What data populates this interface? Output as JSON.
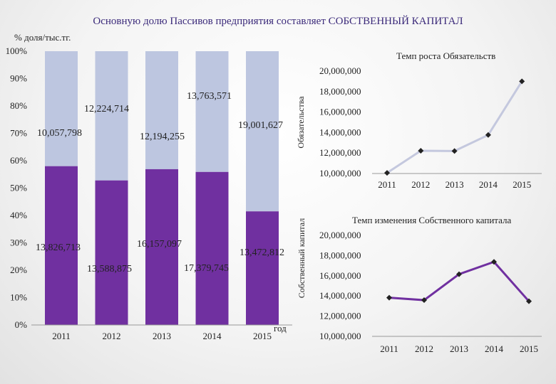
{
  "title": "Основную долю Пассивов предприятия составляет СОБСТВЕННЫЙ КАПИТАЛ",
  "unit_label": "% доля/тыс.тг.",
  "chart_data": [
    {
      "type": "bar",
      "stacked": true,
      "categories": [
        "2011",
        "2012",
        "2013",
        "2014",
        "2015"
      ],
      "xlabel": "год",
      "ylabel": "",
      "ylim": [
        0,
        100
      ],
      "yticks": [
        "0%",
        "10%",
        "20%",
        "30%",
        "40%",
        "50%",
        "60%",
        "70%",
        "80%",
        "90%",
        "100%"
      ],
      "series": [
        {
          "role": "equity",
          "color": "#7030a0",
          "values": [
            58.0,
            52.8,
            56.9,
            55.9,
            41.5
          ],
          "labels": [
            "13,826,713",
            "13,588,875",
            "16,157,097",
            "17,379,745",
            "13,472,812"
          ]
        },
        {
          "role": "liabilities",
          "color": "#bdc6e0",
          "values": [
            42.0,
            47.2,
            43.1,
            44.1,
            58.5
          ],
          "labels": [
            "10,057,798",
            "12,224,714",
            "12,194,255",
            "13,763,571",
            "19,001,627"
          ]
        }
      ],
      "grid": false,
      "legend": "none"
    },
    {
      "type": "line",
      "title": "Темп роста Обязательств",
      "ylabel": "Обязательства",
      "x": [
        "2011",
        "2012",
        "2013",
        "2014",
        "2015"
      ],
      "values": [
        10057798,
        12224714,
        12194255,
        13763571,
        19001627
      ],
      "ylim": [
        10000000,
        20000000
      ],
      "yticks": [
        "10,000,000",
        "12,000,000",
        "14,000,000",
        "16,000,000",
        "18,000,000",
        "20,000,000"
      ],
      "color": "#c4c8de",
      "marker_color": "#222222"
    },
    {
      "type": "line",
      "title": "Темп изменения Собственного капитала",
      "ylabel": "Собственный капитал",
      "x": [
        "2011",
        "2012",
        "2013",
        "2014",
        "2015"
      ],
      "values": [
        13826713,
        13588875,
        16157097,
        17379745,
        13472812
      ],
      "ylim": [
        10000000,
        20000000
      ],
      "yticks": [
        "10,000,000",
        "12,000,000",
        "14,000,000",
        "16,000,000",
        "18,000,000",
        "20,000,000"
      ],
      "color": "#7030a0",
      "marker_color": "#222222"
    }
  ]
}
